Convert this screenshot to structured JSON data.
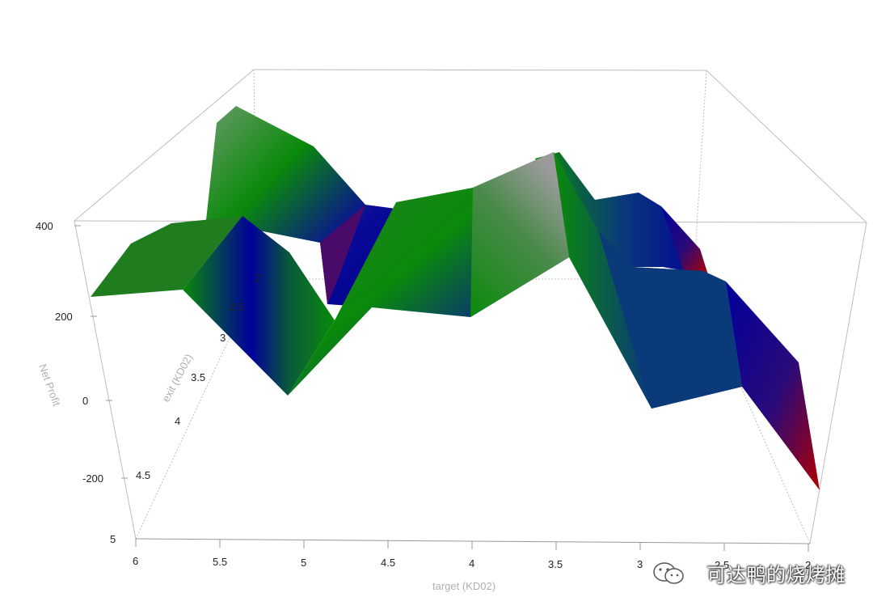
{
  "chart_data": {
    "type": "surface",
    "axes": {
      "x": {
        "title": "target (KD02)",
        "ticks": [
          "6",
          "5.5",
          "5",
          "4.5",
          "4",
          "3.5",
          "3",
          "2.5",
          "2"
        ],
        "range": [
          6,
          2
        ]
      },
      "y": {
        "title": "exit (KD02)",
        "ticks": [
          "2",
          "2.5",
          "3",
          "3.5",
          "4",
          "4.5",
          "5"
        ],
        "range": [
          2,
          5
        ]
      },
      "z": {
        "title": "Net Profit",
        "ticks": [
          "400",
          "200",
          "0",
          "-200"
        ],
        "range": [
          -350,
          400
        ]
      }
    },
    "grid": false,
    "colorscale": [
      "#8b0000",
      "#00008b",
      "#008000",
      "#a0a0a0"
    ],
    "approx_profile_back_row": {
      "target": [
        6,
        5.5,
        5,
        4.5,
        4,
        3.5,
        3,
        2.5,
        2
      ],
      "net_profit": [
        260,
        300,
        250,
        50,
        300,
        350,
        -50,
        100,
        -250
      ]
    },
    "approx_profile_mid_row": {
      "target": [
        5.5,
        5,
        4.5,
        4,
        3.5,
        3,
        2.5
      ],
      "net_profit": [
        430,
        330,
        120,
        270,
        350,
        200,
        230
      ]
    }
  },
  "watermark": {
    "text": "可达鸭的烧烤摊",
    "icon": "wechat-icon"
  }
}
